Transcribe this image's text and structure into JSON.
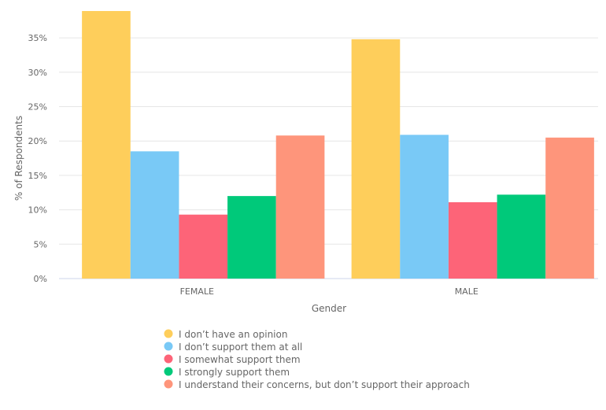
{
  "chart_data": {
    "type": "bar",
    "title": "",
    "xlabel": "Gender",
    "ylabel": "% of Respondents",
    "ylim": [
      0,
      0.39
    ],
    "yticks": [
      0,
      0.05,
      0.1,
      0.15,
      0.2,
      0.25,
      0.3,
      0.35
    ],
    "ytick_labels": [
      "0%",
      "5%",
      "10%",
      "15%",
      "20%",
      "25%",
      "30%",
      "35%"
    ],
    "categories": [
      "FEMALE",
      "MALE"
    ],
    "grid": true,
    "legend_position": "bottom",
    "series": [
      {
        "name": "I don’t have an opinion",
        "color": "#FECE5B",
        "values": [
          0.389,
          0.348
        ]
      },
      {
        "name": "I don’t support them at all",
        "color": "#79C9F6",
        "values": [
          0.185,
          0.209
        ]
      },
      {
        "name": "I somewhat support them",
        "color": "#FD6478",
        "values": [
          0.093,
          0.111
        ]
      },
      {
        "name": "I strongly support them",
        "color": "#00C97A",
        "values": [
          0.12,
          0.122
        ]
      },
      {
        "name": "I understand their concerns, but don’t support their approach",
        "color": "#FE957B",
        "values": [
          0.208,
          0.205
        ]
      }
    ]
  }
}
